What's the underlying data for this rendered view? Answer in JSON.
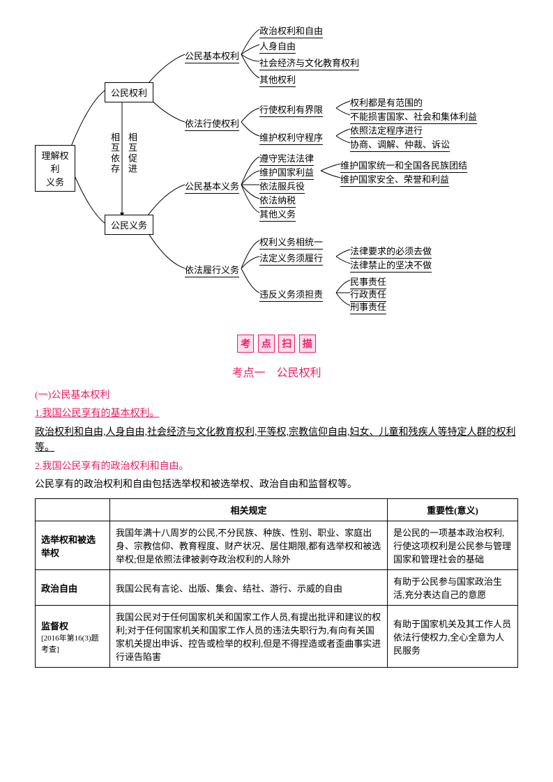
{
  "diagram": {
    "root": "理解权利\n义务",
    "rel1": "相互依存",
    "rel2": "相互促进",
    "n1": "公民权利",
    "n2": "公民义务",
    "n1a": "公民基本权利",
    "n1a_items": [
      "政治权利和自由",
      "人身自由",
      "社会经济与文化教育权利",
      "其他权利"
    ],
    "n1b": "依法行使权利",
    "n1b1": "行使权利有界限",
    "n1b1_items": [
      "权利都是有范围的",
      "不能损害国家、社会和集体利益"
    ],
    "n1b2": "维护权利守程序",
    "n1b2_items": [
      "依照法定程序进行",
      "协商、调解、仲裁、诉讼"
    ],
    "n2a": "公民基本义务",
    "n2a_items": [
      "遵守宪法法律",
      "维护国家利益",
      "依法服兵役",
      "依法纳税",
      "其他义务"
    ],
    "n2a_sub_items": [
      "维护国家统一和全国各民族团结",
      "维护国家安全、荣誉和利益"
    ],
    "n2b": "依法履行义务",
    "n2b1": "权利义务相统一",
    "n2b2": "法定义务须履行",
    "n2b2_items": [
      "法律要求的必须去做",
      "法律禁止的坚决不做"
    ],
    "n2b3": "违反义务须担责",
    "n2b3_items": [
      "民事责任",
      "行政责任",
      "刑事责任"
    ]
  },
  "header_chars": [
    "考",
    "点",
    "扫",
    "描"
  ],
  "subtitle": "考点一　公民权利",
  "sec1_title": "(一)公民基本权利",
  "sec1_p1": "1.我国公民享有的基本权利。",
  "sec1_p2": "政治权利和自由,人身自由,社会经济与文化教育权利,平等权,宗教信仰自由,妇女、儿童和残疾人等特定人群的权利等。",
  "sec1_p3": "2.我国公民享有的政治权利和自由。",
  "sec1_p4": "公民享有的政治权利和自由包括选举权和被选举权、政治自由和监督权等。",
  "table": {
    "headers": [
      "",
      "相关规定",
      "重要性(意义)"
    ],
    "rows": [
      {
        "c0": "选举权和被选举权",
        "c1": "我国年满十八周岁的公民,不分民族、种族、性别、职业、家庭出身、宗教信仰、教育程度、财产状况、居住期限,都有选举权和被选举权;但是依照法律被剥夺政治权利的人除外",
        "c2": "是公民的一项基本政治权利,行使这项权利是公民参与管理国家和管理社会的基础"
      },
      {
        "c0": "政治自由",
        "c1": "我国公民有言论、出版、集会、结社、游行、示威的自由",
        "c2": "有助于公民参与国家政治生活,充分表达自己的意愿"
      },
      {
        "c0_main": "监督权",
        "c0_note": "[2016年第16(3)题考查]",
        "c1": "我国公民对于任何国家机关和国家工作人员,有提出批评和建议的权利;对于任何国家机关和国家工作人员的违法失职行为,有向有关国家机关提出申诉、控告或检举的权利,但是不得捏造或者歪曲事实进行诬告陷害",
        "c2": "有助于国家机关及其工作人员依法行使权力,全心全意为人民服务"
      }
    ]
  }
}
